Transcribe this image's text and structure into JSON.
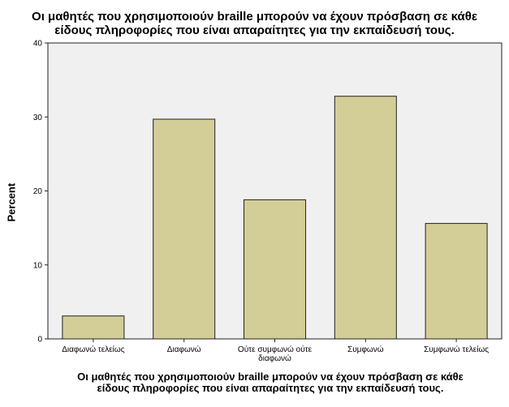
{
  "chart_data": {
    "type": "bar",
    "title": "Οι μαθητές που χρησιμοποιούν braille μπορούν να έχουν πρόσβαση σε κάθε είδους πληροφορίες που είναι απαραίτητες για την εκπαίδευσή τους.",
    "title_lines": [
      "Οι μαθητές που χρησιμοποιούν braille μπορούν να έχουν πρόσβαση σε κάθε",
      "είδους πληροφορίες που είναι απαραίτητες για την εκπαίδευσή τους."
    ],
    "xlabel_lines": [
      "Οι μαθητές που χρησιμοποιούν braille μπορούν να έχουν πρόσβαση σε κάθε",
      "είδους πληροφορίες που είναι απαραίτητες για την εκπαίδευσή τους."
    ],
    "ylabel": "Percent",
    "categories": [
      [
        "Διαφωνώ τελείως"
      ],
      [
        "Διαφωνώ"
      ],
      [
        "Ούτε συμφωνώ ούτε",
        "διαφωνώ"
      ],
      [
        "Συμφωνώ"
      ],
      [
        "Συμφωνώ τελείως"
      ]
    ],
    "values": [
      3.1,
      29.7,
      18.8,
      32.8,
      15.6
    ],
    "ylim": [
      0,
      40
    ],
    "yticks": [
      0,
      10,
      20,
      30,
      40
    ],
    "grid": false,
    "colors": {
      "bar_fill": "#d3ce98",
      "bar_stroke": "#222222",
      "plot_bg": "#f0f0f0"
    }
  }
}
